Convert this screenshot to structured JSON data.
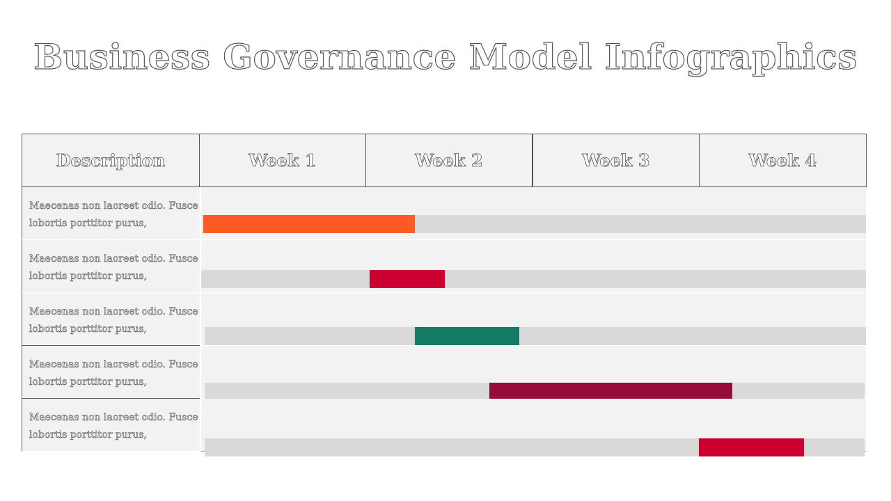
{
  "title": "Business Governance Model Infographics",
  "header": {
    "description": "Description",
    "weeks": [
      "Week 1",
      "Week 2",
      "Week 3",
      "Week 4"
    ]
  },
  "rows": [
    {
      "text": "Maecenas non laoreet odio. Fusce lobortis porttitor  purus,",
      "start_week": 0.0,
      "end_week": 1.27,
      "color": "#ff5a27"
    },
    {
      "text": "Maecenas non laoreet odio. Fusce lobortis porttitor  purus,",
      "start_week": 1.0,
      "end_week": 1.45,
      "color": "#cc0033"
    },
    {
      "text": "Maecenas non laoreet odio. Fusce lobortis porttitor  purus,",
      "start_week": 1.27,
      "end_week": 1.9,
      "color": "#157a63"
    },
    {
      "text": "Maecenas non laoreet odio. Fusce lobortis porttitor  purus,",
      "start_week": 1.72,
      "end_week": 3.18,
      "color": "#960a3c"
    },
    {
      "text": "Maecenas non laoreet odio. Fusce lobortis porttitor  purus,",
      "start_week": 2.98,
      "end_week": 3.61,
      "color": "#cc0033"
    }
  ]
}
